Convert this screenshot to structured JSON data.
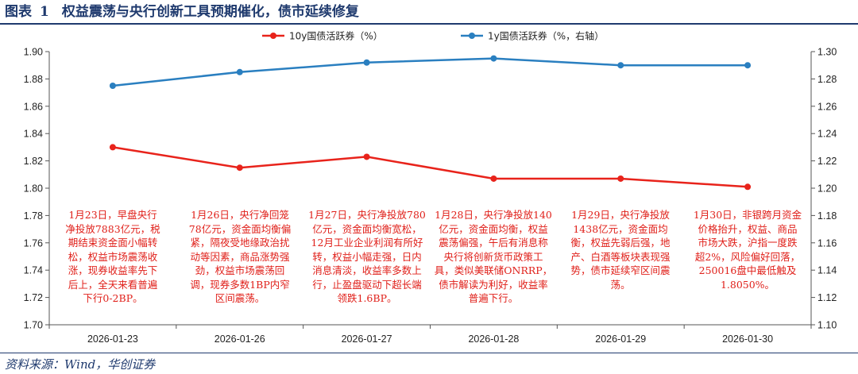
{
  "header": {
    "label": "图表",
    "number": "1",
    "title": "权益震荡与央行创新工具预期催化，债市延续修复"
  },
  "footer": {
    "source": "资料来源：Wind，华创证券"
  },
  "colors": {
    "series_10y": "#e8231b",
    "series_1y": "#2a7fc0",
    "annotation": "#e0201a",
    "title": "#1f3a6e"
  },
  "chart_data": {
    "type": "line",
    "categories": [
      "2026-01-23",
      "2026-01-26",
      "2026-01-27",
      "2026-01-28",
      "2026-01-29",
      "2026-01-30"
    ],
    "series": [
      {
        "name": "10y国债活跃券（%）",
        "axis": "left",
        "color": "#e8231b",
        "values": [
          1.83,
          1.815,
          1.823,
          1.807,
          1.807,
          1.801
        ]
      },
      {
        "name": "1y国债活跃券（%，右轴）",
        "axis": "right",
        "color": "#2a7fc0",
        "values": [
          1.275,
          1.285,
          1.292,
          1.295,
          1.29,
          1.29
        ]
      }
    ],
    "y_left": {
      "min": 1.7,
      "max": 1.9,
      "step": 0.02,
      "ticks": [
        "1.70",
        "1.72",
        "1.74",
        "1.76",
        "1.78",
        "1.80",
        "1.82",
        "1.84",
        "1.86",
        "1.88",
        "1.90"
      ]
    },
    "y_right": {
      "min": 1.1,
      "max": 1.3,
      "step": 0.02,
      "ticks": [
        "1.10",
        "1.12",
        "1.14",
        "1.16",
        "1.18",
        "1.20",
        "1.22",
        "1.24",
        "1.26",
        "1.28",
        "1.30"
      ]
    },
    "legend": "top-center",
    "grid": false,
    "annotations": [
      {
        "x": "2026-01-23",
        "lines": [
          "1月23日，早盘央行",
          "净投放7883亿元，税",
          "期结束资金面小幅转",
          "松，权益市场震荡收",
          "涨，现券收益率先下",
          "后上，全天来看普遍",
          "下行0-2BP。"
        ]
      },
      {
        "x": "2026-01-26",
        "lines": [
          "1月26日，央行净回笼",
          "78亿元，资金面均衡偏",
          "紧，隔夜受地缘政治扰",
          "动等因素，商品涨势强",
          "劲，权益市场震荡回",
          "调，现券多数1BP内窄",
          "区间震荡。"
        ]
      },
      {
        "x": "2026-01-27",
        "lines": [
          "1月27日，央行净投放780",
          "亿元，资金面均衡宽松，",
          "12月工业企业利润有所好",
          "转，权益小幅走强，日内",
          "消息清淡，收益率多数上",
          "行，止盈盘驱动下超长端",
          "领跌1.6BP。"
        ]
      },
      {
        "x": "2026-01-28",
        "lines": [
          "1月28日，央行净投放140",
          "亿元，资金面均衡，权益",
          "震荡偏强，午后有消息称",
          "央行将创新货币政策工",
          "具，类似美联储ONRRP，",
          "债市解读为利好，收益率",
          "普遍下行。"
        ]
      },
      {
        "x": "2026-01-29",
        "lines": [
          "1月29日，央行净投放",
          "1438亿元，资金面均",
          "衡，权益先弱后强，地",
          "产、白酒等板块表现强",
          "势，债市延续窄区间震",
          "荡。"
        ]
      },
      {
        "x": "2026-01-30",
        "lines": [
          "1月30日，非银跨月资金",
          "价格抬升，权益、商品",
          "市场大跌，沪指一度跌",
          "超2%，风险偏好回落，",
          "250016盘中最低触及",
          "1.8050%。"
        ]
      }
    ]
  }
}
